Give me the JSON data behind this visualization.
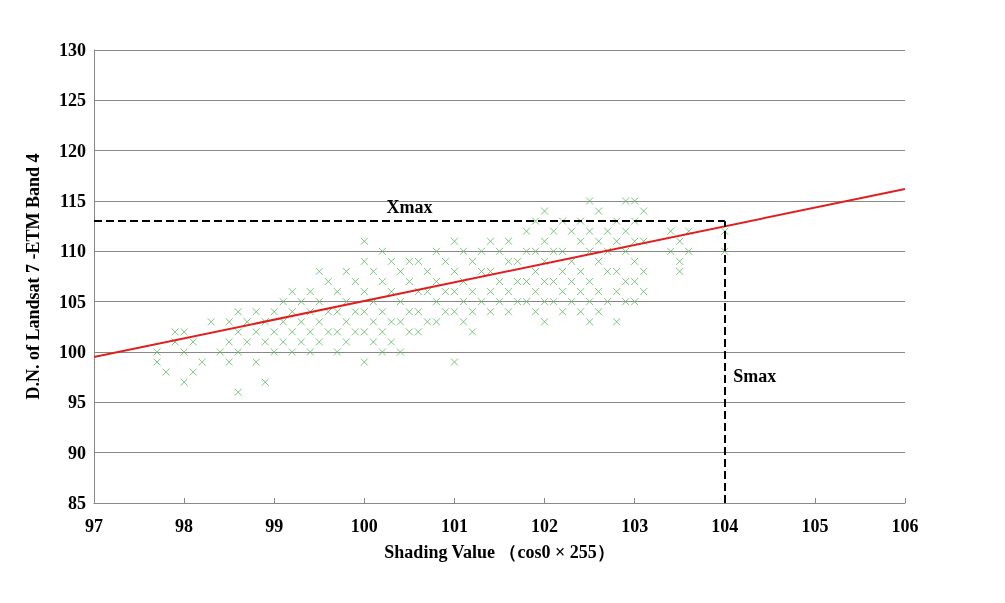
{
  "chart_data": {
    "type": "scatter",
    "xlabel": "Shading Value （cos0 × 255）",
    "ylabel": "D.N. of Landsat 7 -ETM Band 4",
    "xlim": [
      97,
      106
    ],
    "xticks": [
      97,
      98,
      99,
      100,
      101,
      102,
      103,
      104,
      105,
      106
    ],
    "ylim": [
      85,
      130
    ],
    "yticks": [
      85,
      90,
      95,
      100,
      105,
      110,
      115,
      120,
      125,
      130
    ],
    "grid": "y",
    "marker": "cross",
    "series": [
      {
        "color": "#5cb85c",
        "x": [
          97.7,
          97.7,
          97.8,
          97.9,
          97.9,
          98,
          98,
          98,
          98.1,
          98.1,
          98.2,
          98.3,
          98.4,
          98.5,
          98.5,
          98.5,
          98.6,
          98.6,
          98.6,
          98.6,
          98.7,
          98.7,
          98.8,
          98.8,
          98.8,
          98.9,
          98.9,
          98.9,
          99,
          99,
          99,
          99.1,
          99.1,
          99.1,
          99.2,
          99.2,
          99.2,
          99.2,
          99.3,
          99.3,
          99.3,
          99.4,
          99.4,
          99.4,
          99.4,
          99.5,
          99.5,
          99.5,
          99.5,
          99.6,
          99.6,
          99.6,
          99.7,
          99.7,
          99.7,
          99.7,
          99.8,
          99.8,
          99.8,
          99.8,
          99.9,
          99.9,
          99.9,
          100,
          100,
          100,
          100,
          100,
          100,
          100.1,
          100.1,
          100.1,
          100.1,
          100.2,
          100.2,
          100.2,
          100.2,
          100.2,
          100.3,
          100.3,
          100.3,
          100.3,
          100.4,
          100.4,
          100.4,
          100.4,
          100.5,
          100.5,
          100.5,
          100.5,
          100.6,
          100.6,
          100.6,
          100.6,
          100.7,
          100.7,
          100.7,
          100.8,
          100.8,
          100.8,
          100.8,
          100.9,
          100.9,
          100.9,
          101,
          101,
          101,
          101,
          101,
          101.1,
          101.1,
          101.1,
          101.1,
          101.2,
          101.2,
          101.2,
          101.2,
          101.3,
          101.3,
          101.3,
          101.4,
          101.4,
          101.4,
          101.4,
          101.5,
          101.5,
          101.5,
          101.6,
          101.6,
          101.6,
          101.6,
          101.7,
          101.7,
          101.7,
          101.8,
          101.8,
          101.8,
          101.8,
          101.9,
          101.9,
          101.9,
          101.9,
          101.9,
          102,
          102,
          102,
          102,
          102,
          102,
          102.1,
          102.1,
          102.1,
          102.1,
          102.2,
          102.2,
          102.2,
          102.2,
          102.2,
          102.3,
          102.3,
          102.3,
          102.3,
          102.4,
          102.4,
          102.4,
          102.4,
          102.4,
          102.5,
          102.5,
          102.5,
          102.5,
          102.5,
          102.5,
          102.6,
          102.6,
          102.6,
          102.6,
          102.6,
          102.7,
          102.7,
          102.7,
          102.7,
          102.8,
          102.8,
          102.8,
          102.8,
          102.8,
          102.9,
          102.9,
          102.9,
          102.9,
          102.9,
          103,
          103,
          103,
          103,
          103,
          103,
          103.1,
          103.1,
          103.1,
          103.1,
          103.4,
          103.4,
          103.5,
          103.5,
          103.5,
          103.6,
          103.6,
          104,
          104
        ],
        "values": [
          100,
          99,
          98,
          102,
          101,
          102,
          100,
          97,
          101,
          98,
          99,
          103,
          100,
          101,
          99,
          103,
          104,
          102,
          100,
          96,
          103,
          101,
          104,
          102,
          99,
          103,
          101,
          97,
          104,
          102,
          100,
          105,
          103,
          101,
          106,
          104,
          102,
          100,
          105,
          103,
          101,
          106,
          104,
          102,
          100,
          108,
          105,
          103,
          101,
          107,
          104,
          102,
          106,
          104,
          102,
          100,
          108,
          105,
          103,
          101,
          107,
          104,
          102,
          111,
          109,
          106,
          104,
          102,
          99,
          108,
          105,
          103,
          101,
          110,
          107,
          104,
          102,
          100,
          109,
          106,
          103,
          101,
          108,
          105,
          103,
          100,
          109,
          107,
          104,
          102,
          109,
          106,
          104,
          102,
          108,
          106,
          103,
          110,
          107,
          105,
          103,
          109,
          106,
          104,
          111,
          108,
          106,
          104,
          99,
          110,
          107,
          105,
          103,
          109,
          106,
          104,
          102,
          110,
          108,
          105,
          111,
          108,
          106,
          104,
          110,
          107,
          105,
          111,
          109,
          106,
          104,
          109,
          107,
          105,
          112,
          110,
          107,
          105,
          113,
          110,
          108,
          106,
          104,
          114,
          111,
          109,
          107,
          105,
          103,
          112,
          110,
          107,
          105,
          113,
          110,
          108,
          106,
          104,
          112,
          109,
          107,
          105,
          113,
          111,
          108,
          106,
          104,
          115,
          112,
          110,
          107,
          105,
          103,
          114,
          111,
          109,
          106,
          104,
          112,
          110,
          108,
          105,
          113,
          111,
          108,
          106,
          103,
          115,
          112,
          110,
          107,
          105,
          115,
          113,
          111,
          109,
          107,
          105,
          114,
          111,
          108,
          106,
          112,
          110,
          111,
          109,
          108,
          112,
          110,
          112,
          110
        ]
      },
      {
        "type": "line",
        "marker": "none",
        "color": "#e02020",
        "x": [
          97,
          106
        ],
        "values": [
          99.5,
          116.2
        ]
      }
    ],
    "ref_lines": [
      {
        "axis": "y",
        "value": 113,
        "label": "Xmax",
        "color": "#000000",
        "line_style": "dashed"
      },
      {
        "axis": "x",
        "value": 104,
        "label": "Smax",
        "color": "#000000",
        "line_style": "dashed"
      }
    ]
  }
}
